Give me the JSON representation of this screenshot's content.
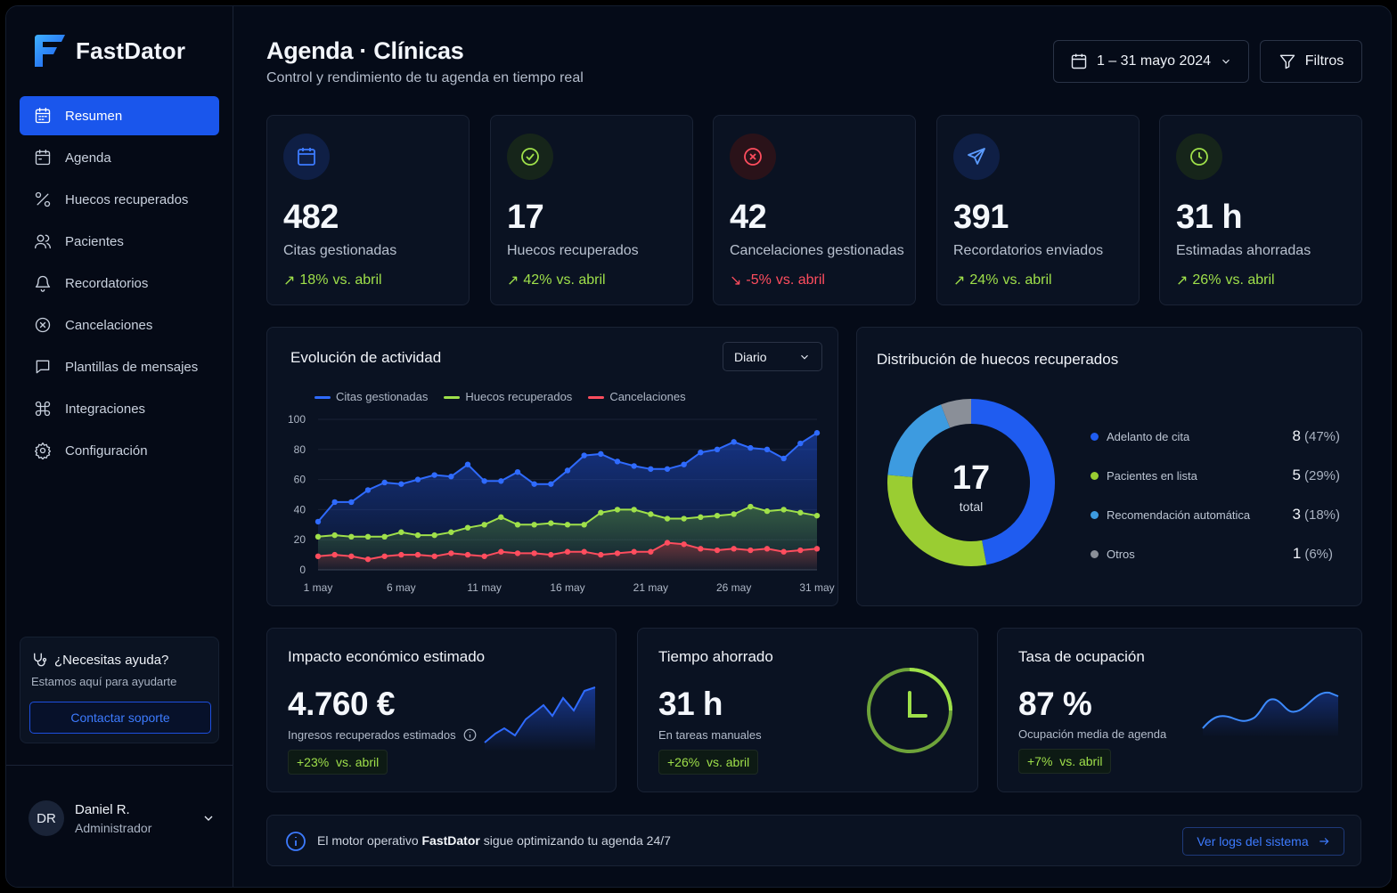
{
  "brand": {
    "name": "FastDator"
  },
  "sidebar": {
    "items": [
      {
        "label": "Resumen",
        "icon": "calendar-icon"
      },
      {
        "label": "Agenda",
        "icon": "calendar-icon"
      },
      {
        "label": "Huecos recuperados",
        "icon": "percent-icon"
      },
      {
        "label": "Pacientes",
        "icon": "users-icon"
      },
      {
        "label": "Recordatorios",
        "icon": "bell-icon"
      },
      {
        "label": "Cancelaciones",
        "icon": "x-circle-icon"
      },
      {
        "label": "Plantillas de mensajes",
        "icon": "message-icon"
      },
      {
        "label": "Integraciones",
        "icon": "command-icon"
      },
      {
        "label": "Configuración",
        "icon": "gear-icon"
      }
    ],
    "help": {
      "title": "¿Necesitas ayuda?",
      "subtitle": "Estamos aquí para ayudarte",
      "button": "Contactar soporte"
    },
    "user": {
      "initials": "DR",
      "name": "Daniel R.",
      "role": "Administrador"
    }
  },
  "header": {
    "title": "Agenda · Clínicas",
    "subtitle": "Control y rendimiento de tu agenda en tiempo real",
    "date_range": "1 – 31 mayo 2024",
    "filters": "Filtros"
  },
  "kpis": [
    {
      "value": "482",
      "label": "Citas gestionadas",
      "delta": "18%",
      "delta_suffix": "vs. abril",
      "trend": "up",
      "color": "#3d7bff"
    },
    {
      "value": "17",
      "label": "Huecos recuperados",
      "delta": "42%",
      "delta_suffix": "vs. abril",
      "trend": "up",
      "color": "#9fe04a"
    },
    {
      "value": "42",
      "label": "Cancelaciones gestionadas",
      "delta": "-5%",
      "delta_suffix": "vs. abril",
      "trend": "down",
      "color": "#ff4d5e"
    },
    {
      "value": "391",
      "label": "Recordatorios enviados",
      "delta": "24%",
      "delta_suffix": "vs. abril",
      "trend": "up",
      "color": "#5b9bff"
    },
    {
      "value": "31 h",
      "label": "Estimadas ahorradas",
      "delta": "26%",
      "delta_suffix": "vs. abril",
      "trend": "up",
      "color": "#9fe04a"
    }
  ],
  "activity": {
    "title": "Evolución de actividad",
    "period": "Diario",
    "chart_data": {
      "type": "line",
      "x": [
        "1 may",
        "2 may",
        "3 may",
        "4 may",
        "5 may",
        "6 may",
        "7 may",
        "8 may",
        "9 may",
        "10 may",
        "11 may",
        "12 may",
        "13 may",
        "14 may",
        "15 may",
        "16 may",
        "17 may",
        "18 may",
        "19 may",
        "20 may",
        "21 may",
        "22 may",
        "23 may",
        "24 may",
        "25 may",
        "26 may",
        "27 may",
        "28 may",
        "29 may",
        "30 may",
        "31 may"
      ],
      "xticks": [
        "1 may",
        "6 may",
        "11 may",
        "16 may",
        "21 may",
        "26 may",
        "31 may"
      ],
      "yticks": [
        0,
        20,
        40,
        60,
        80,
        100
      ],
      "ylim": [
        0,
        100
      ],
      "series": [
        {
          "name": "Citas gestionadas",
          "color": "#2f6bff",
          "values": [
            32,
            45,
            45,
            53,
            58,
            57,
            60,
            63,
            62,
            70,
            59,
            59,
            65,
            57,
            57,
            66,
            76,
            77,
            72,
            69,
            67,
            67,
            70,
            78,
            80,
            85,
            81,
            80,
            74,
            84,
            91
          ]
        },
        {
          "name": "Huecos recuperados",
          "color": "#9fe04a",
          "values": [
            22,
            23,
            22,
            22,
            22,
            25,
            23,
            23,
            25,
            28,
            30,
            35,
            30,
            30,
            31,
            30,
            30,
            38,
            40,
            40,
            37,
            34,
            34,
            35,
            36,
            37,
            42,
            39,
            40,
            38,
            36
          ]
        },
        {
          "name": "Cancelaciones",
          "color": "#ff4d5e",
          "values": [
            9,
            10,
            9,
            7,
            9,
            10,
            10,
            9,
            11,
            10,
            9,
            12,
            11,
            11,
            10,
            12,
            12,
            10,
            11,
            12,
            12,
            18,
            17,
            14,
            13,
            14,
            13,
            14,
            12,
            13,
            14
          ]
        }
      ]
    }
  },
  "distribution": {
    "title": "Distribución de huecos recuperados",
    "total": "17",
    "total_label": "total",
    "chart_data": {
      "type": "pie",
      "labels": [
        "Adelanto de cita",
        "Pacientes en lista",
        "Recomendación automática",
        "Otros"
      ],
      "values": [
        8,
        5,
        3,
        1
      ],
      "percents": [
        "(47%)",
        "(29%)",
        "(18%)",
        "(6%)"
      ],
      "colors": [
        "#1f5cf0",
        "#9acd32",
        "#3d9be0",
        "#8a8f98"
      ]
    }
  },
  "impact": {
    "title": "Impacto económico estimado",
    "value": "4.760 €",
    "sub": "Ingresos recuperados estimados",
    "badge_delta": "+23%",
    "badge_suffix": "vs. abril"
  },
  "time": {
    "title": "Tiempo ahorrado",
    "value": "31 h",
    "sub": "En tareas manuales",
    "badge_delta": "+26%",
    "badge_suffix": "vs. abril"
  },
  "occupancy": {
    "title": "Tasa de ocupación",
    "value": "87 %",
    "sub": "Ocupación media de agenda",
    "badge_delta": "+7%",
    "badge_suffix": "vs. abril"
  },
  "footer": {
    "text_pre": "El motor operativo ",
    "text_brand": "FastDator",
    "text_post": " sigue optimizando tu agenda 24/7",
    "button": "Ver logs del sistema"
  }
}
